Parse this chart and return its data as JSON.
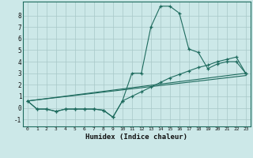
{
  "xlabel": "Humidex (Indice chaleur)",
  "background_color": "#cce8e8",
  "grid_color": "#a8c8c8",
  "line_color": "#1e6b5e",
  "xlim": [
    -0.5,
    23.5
  ],
  "ylim": [
    -1.6,
    9.2
  ],
  "xticks": [
    0,
    1,
    2,
    3,
    4,
    5,
    6,
    7,
    8,
    9,
    10,
    11,
    12,
    13,
    14,
    15,
    16,
    17,
    18,
    19,
    20,
    21,
    22,
    23
  ],
  "yticks": [
    -1,
    0,
    1,
    2,
    3,
    4,
    5,
    6,
    7,
    8
  ],
  "curve1_x": [
    0,
    1,
    2,
    3,
    4,
    5,
    6,
    7,
    8,
    9,
    10,
    11,
    12,
    13,
    14,
    15,
    16,
    17,
    18,
    19,
    20,
    21,
    22,
    23
  ],
  "curve1_y": [
    0.6,
    -0.1,
    -0.1,
    -0.3,
    -0.1,
    -0.1,
    -0.1,
    -0.1,
    -0.2,
    -0.8,
    0.6,
    3.0,
    3.0,
    7.0,
    8.8,
    8.8,
    8.2,
    5.1,
    4.8,
    3.4,
    3.8,
    4.0,
    4.0,
    3.0
  ],
  "curve2_x": [
    0,
    1,
    2,
    3,
    4,
    5,
    6,
    7,
    8,
    9,
    10,
    11,
    12,
    13,
    14,
    15,
    16,
    17,
    18,
    19,
    20,
    21,
    22,
    23
  ],
  "curve2_y": [
    0.6,
    -0.1,
    -0.1,
    -0.3,
    -0.1,
    -0.1,
    -0.1,
    -0.1,
    -0.2,
    -0.8,
    0.6,
    1.0,
    1.4,
    1.8,
    2.2,
    2.6,
    2.9,
    3.2,
    3.5,
    3.7,
    4.0,
    4.2,
    4.4,
    3.0
  ],
  "line3": [
    0.6,
    3.0
  ],
  "line4": [
    0.6,
    2.8
  ]
}
